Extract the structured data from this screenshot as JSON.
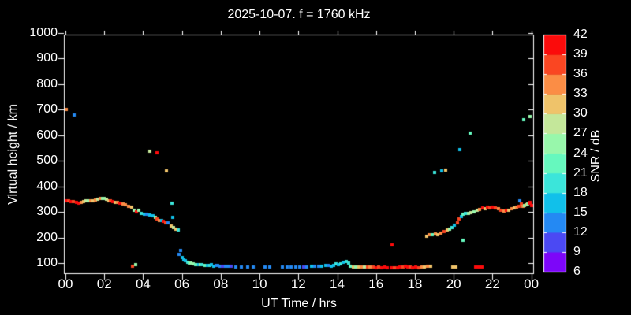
{
  "title": "2025-10-07. f = 1760 kHz",
  "colors": {
    "background": "#000000",
    "frame": "#ffffff",
    "text": "#ffffff"
  },
  "x_axis": {
    "label": "UT Time / hrs",
    "tick_labels": [
      "00",
      "02",
      "04",
      "06",
      "08",
      "10",
      "12",
      "14",
      "16",
      "18",
      "20",
      "22",
      "00"
    ],
    "range_hours": [
      0,
      24
    ]
  },
  "y_axis": {
    "label": "Virtual height / km",
    "tick_labels": [
      "100",
      "200",
      "300",
      "400",
      "500",
      "600",
      "700",
      "800",
      "900",
      "1000"
    ],
    "range_km": [
      60,
      1005
    ]
  },
  "colorbar": {
    "label": "SNR / dB",
    "tick_labels": [
      "6",
      "9",
      "12",
      "15",
      "18",
      "21",
      "24",
      "27",
      "30",
      "33",
      "36",
      "39",
      "42"
    ],
    "range_db": [
      6,
      42
    ],
    "step_db": 3,
    "segment_colors_low_to_high": [
      "#7d06f9",
      "#4b49f3",
      "#2489f3",
      "#11c0ea",
      "#3be5da",
      "#66f8be",
      "#98f7ab",
      "#c4e79a",
      "#efc36a",
      "#fb8d45",
      "#fa4622",
      "#fb0b0b"
    ]
  },
  "chart_data": {
    "type": "scatter",
    "title": "2025-10-07. f = 1760 kHz",
    "xlabel": "UT Time / hrs",
    "ylabel": "Virtual height / km",
    "colorbar_label": "SNR / dB",
    "xlim": [
      0,
      24
    ],
    "ylim": [
      60,
      1005
    ],
    "snr_lim": [
      6,
      42
    ],
    "x_ticks": [
      "00",
      "02",
      "04",
      "06",
      "08",
      "10",
      "12",
      "14",
      "16",
      "18",
      "20",
      "22",
      "00"
    ],
    "y_ticks": [
      100,
      200,
      300,
      400,
      500,
      600,
      700,
      800,
      900,
      1000
    ],
    "snr_ticks": [
      6,
      9,
      12,
      15,
      18,
      21,
      24,
      27,
      30,
      33,
      36,
      39,
      42
    ],
    "snr_colors": [
      "#7d06f9",
      "#4b49f3",
      "#2489f3",
      "#11c0ea",
      "#3be5da",
      "#66f8be",
      "#98f7ab",
      "#c4e79a",
      "#efc36a",
      "#fb8d45",
      "#fa4622",
      "#fb0b0b"
    ],
    "grid": false,
    "legend_position": "right-colorbar",
    "points_format": [
      "ut_hours",
      "virtual_height_km",
      "snr_db"
    ],
    "points": [
      [
        0.05,
        700,
        34
      ],
      [
        0.45,
        678,
        13
      ],
      [
        0.05,
        345,
        40
      ],
      [
        0.18,
        342,
        37
      ],
      [
        0.3,
        341,
        40
      ],
      [
        0.42,
        339,
        37
      ],
      [
        0.55,
        336,
        40
      ],
      [
        0.68,
        334,
        40
      ],
      [
        0.8,
        336,
        34
      ],
      [
        0.95,
        340,
        31
      ],
      [
        1.05,
        342,
        28
      ],
      [
        1.18,
        344,
        25
      ],
      [
        1.3,
        345,
        34
      ],
      [
        1.42,
        342,
        31
      ],
      [
        1.55,
        347,
        34
      ],
      [
        1.68,
        350,
        28
      ],
      [
        1.8,
        352,
        34
      ],
      [
        1.92,
        354,
        25
      ],
      [
        2.0,
        352,
        25
      ],
      [
        2.1,
        350,
        28
      ],
      [
        2.22,
        345,
        31
      ],
      [
        2.32,
        342,
        37
      ],
      [
        2.45,
        340,
        40
      ],
      [
        2.58,
        338,
        31
      ],
      [
        2.7,
        336,
        34
      ],
      [
        2.82,
        334,
        40
      ],
      [
        2.95,
        332,
        34
      ],
      [
        3.1,
        328,
        34
      ],
      [
        3.25,
        322,
        34
      ],
      [
        3.4,
        318,
        31
      ],
      [
        3.55,
        308,
        25
      ],
      [
        3.65,
        300,
        40
      ],
      [
        3.78,
        305,
        25
      ],
      [
        3.9,
        295,
        19
      ],
      [
        4.05,
        292,
        16
      ],
      [
        4.2,
        290,
        13
      ],
      [
        4.35,
        288,
        16
      ],
      [
        4.5,
        285,
        16
      ],
      [
        4.62,
        278,
        25
      ],
      [
        4.72,
        272,
        37
      ],
      [
        4.85,
        268,
        34
      ],
      [
        4.95,
        265,
        16
      ],
      [
        5.05,
        262,
        40
      ],
      [
        5.18,
        258,
        37
      ],
      [
        5.3,
        256,
        13
      ],
      [
        5.45,
        245,
        31
      ],
      [
        5.58,
        240,
        28
      ],
      [
        5.7,
        232,
        31
      ],
      [
        5.8,
        228,
        19
      ],
      [
        3.45,
        88,
        37
      ],
      [
        3.62,
        95,
        25
      ],
      [
        4.35,
        538,
        28
      ],
      [
        4.7,
        532,
        40
      ],
      [
        5.2,
        462,
        31
      ],
      [
        5.5,
        335,
        19
      ],
      [
        5.52,
        280,
        16
      ],
      [
        5.85,
        135,
        13
      ],
      [
        5.95,
        150,
        13
      ],
      [
        6.0,
        122,
        16
      ],
      [
        6.08,
        112,
        16
      ],
      [
        6.18,
        108,
        16
      ],
      [
        6.28,
        104,
        19
      ],
      [
        6.38,
        101,
        22
      ],
      [
        6.48,
        99,
        25
      ],
      [
        6.58,
        97,
        25
      ],
      [
        6.72,
        95,
        22
      ],
      [
        6.85,
        94,
        16
      ],
      [
        6.95,
        93,
        25
      ],
      [
        7.05,
        93,
        19
      ],
      [
        7.18,
        92,
        22
      ],
      [
        7.3,
        91,
        16
      ],
      [
        7.42,
        90,
        19
      ],
      [
        7.52,
        94,
        16
      ],
      [
        7.62,
        88,
        16
      ],
      [
        7.75,
        92,
        13
      ],
      [
        7.85,
        90,
        13
      ],
      [
        7.98,
        89,
        13
      ],
      [
        8.1,
        89,
        10
      ],
      [
        8.25,
        88,
        13
      ],
      [
        8.4,
        88,
        13
      ],
      [
        8.55,
        87,
        10
      ],
      [
        8.78,
        86,
        13
      ],
      [
        9.08,
        86,
        13
      ],
      [
        9.38,
        86,
        13
      ],
      [
        9.68,
        86,
        13
      ],
      [
        10.28,
        86,
        13
      ],
      [
        10.52,
        86,
        13
      ],
      [
        11.18,
        86,
        13
      ],
      [
        11.42,
        86,
        13
      ],
      [
        11.62,
        86,
        13
      ],
      [
        11.88,
        86,
        13
      ],
      [
        12.05,
        86,
        13
      ],
      [
        12.28,
        86,
        10
      ],
      [
        12.45,
        86,
        13
      ],
      [
        12.68,
        87,
        16
      ],
      [
        12.85,
        87,
        13
      ],
      [
        13.05,
        87,
        13
      ],
      [
        13.22,
        87,
        16
      ],
      [
        13.42,
        92,
        16
      ],
      [
        13.55,
        90,
        13
      ],
      [
        13.7,
        89,
        16
      ],
      [
        13.82,
        90,
        16
      ],
      [
        13.95,
        97,
        19
      ],
      [
        14.08,
        95,
        16
      ],
      [
        14.2,
        98,
        19
      ],
      [
        14.32,
        103,
        16
      ],
      [
        14.45,
        106,
        19
      ],
      [
        14.58,
        101,
        19
      ],
      [
        14.68,
        88,
        22
      ],
      [
        14.82,
        85,
        31
      ],
      [
        14.95,
        84,
        25
      ],
      [
        15.1,
        85,
        31
      ],
      [
        15.25,
        84,
        34
      ],
      [
        15.4,
        85,
        28
      ],
      [
        15.55,
        84,
        37
      ],
      [
        15.7,
        84,
        34
      ],
      [
        15.85,
        84,
        37
      ],
      [
        16.0,
        83,
        40
      ],
      [
        16.15,
        84,
        37
      ],
      [
        16.3,
        83,
        40
      ],
      [
        16.45,
        84,
        40
      ],
      [
        16.6,
        83,
        40
      ],
      [
        16.78,
        83,
        40
      ],
      [
        16.95,
        82,
        37
      ],
      [
        17.1,
        82,
        40
      ],
      [
        17.25,
        84,
        40
      ],
      [
        17.38,
        86,
        37
      ],
      [
        17.5,
        88,
        40
      ],
      [
        17.62,
        86,
        40
      ],
      [
        17.75,
        84,
        37
      ],
      [
        17.9,
        83,
        40
      ],
      [
        18.05,
        84,
        40
      ],
      [
        18.2,
        83,
        37
      ],
      [
        18.35,
        84,
        34
      ],
      [
        18.5,
        86,
        31
      ],
      [
        18.65,
        89,
        34
      ],
      [
        18.82,
        87,
        31
      ],
      [
        16.82,
        172,
        40
      ],
      [
        19.95,
        85,
        31
      ],
      [
        20.12,
        85,
        31
      ],
      [
        21.15,
        85,
        40
      ],
      [
        21.3,
        85,
        40
      ],
      [
        21.45,
        85,
        40
      ],
      [
        20.5,
        188,
        22
      ],
      [
        19.0,
        455,
        19
      ],
      [
        19.38,
        460,
        16
      ],
      [
        19.6,
        465,
        31
      ],
      [
        20.3,
        545,
        16
      ],
      [
        20.85,
        608,
        22
      ],
      [
        23.6,
        662,
        22
      ],
      [
        23.95,
        672,
        25
      ],
      [
        18.62,
        205,
        31
      ],
      [
        18.75,
        210,
        34
      ],
      [
        18.9,
        212,
        22
      ],
      [
        19.05,
        215,
        34
      ],
      [
        19.2,
        212,
        31
      ],
      [
        19.35,
        218,
        34
      ],
      [
        19.5,
        222,
        37
      ],
      [
        19.65,
        228,
        31
      ],
      [
        19.8,
        232,
        25
      ],
      [
        19.92,
        238,
        19
      ],
      [
        20.05,
        248,
        16
      ],
      [
        20.18,
        258,
        37
      ],
      [
        20.28,
        272,
        37
      ],
      [
        20.38,
        282,
        16
      ],
      [
        20.5,
        290,
        22
      ],
      [
        20.62,
        293,
        19
      ],
      [
        20.75,
        295,
        25
      ],
      [
        20.88,
        298,
        28
      ],
      [
        21.05,
        300,
        25
      ],
      [
        21.2,
        305,
        28
      ],
      [
        21.35,
        310,
        34
      ],
      [
        21.5,
        315,
        40
      ],
      [
        21.62,
        312,
        31
      ],
      [
        21.75,
        318,
        40
      ],
      [
        21.88,
        316,
        37
      ],
      [
        22.0,
        318,
        40
      ],
      [
        22.15,
        315,
        37
      ],
      [
        22.3,
        312,
        34
      ],
      [
        22.45,
        305,
        37
      ],
      [
        22.58,
        302,
        34
      ],
      [
        22.7,
        305,
        40
      ],
      [
        22.85,
        308,
        31
      ],
      [
        23.0,
        312,
        34
      ],
      [
        23.12,
        315,
        31
      ],
      [
        23.25,
        318,
        34
      ],
      [
        23.38,
        322,
        37
      ],
      [
        23.42,
        345,
        13
      ],
      [
        23.5,
        330,
        37
      ],
      [
        23.55,
        322,
        34
      ],
      [
        23.65,
        325,
        25
      ],
      [
        23.72,
        328,
        31
      ],
      [
        23.8,
        331,
        25
      ],
      [
        23.88,
        335,
        40
      ],
      [
        23.95,
        338,
        40
      ],
      [
        24.0,
        325,
        40
      ]
    ]
  }
}
